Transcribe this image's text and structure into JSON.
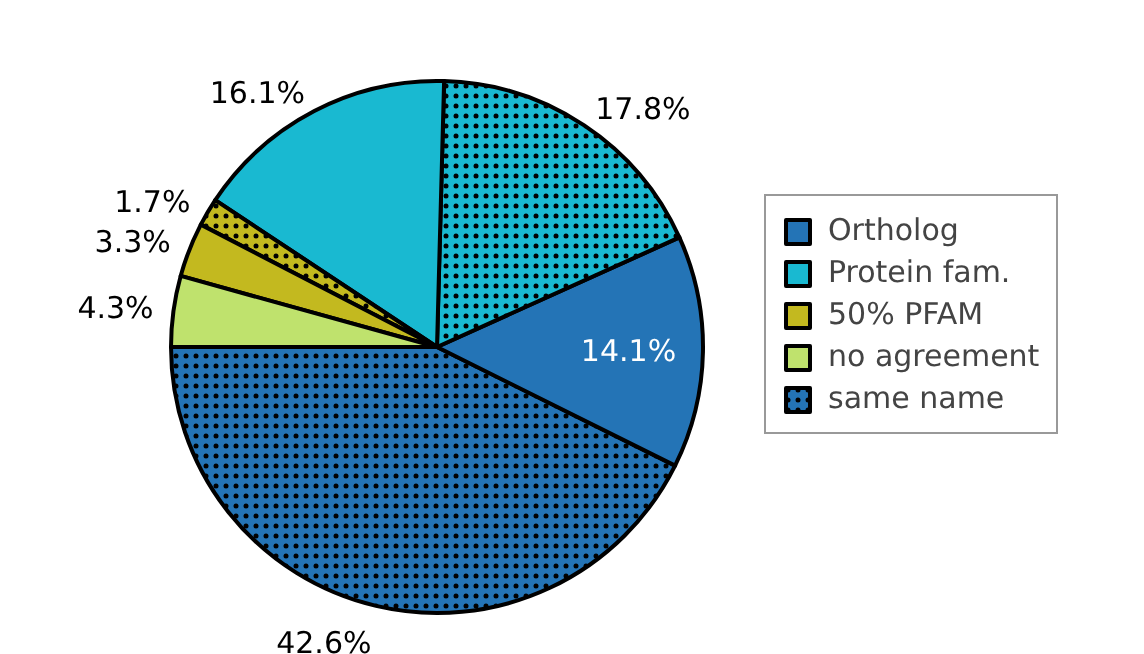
{
  "chart_data": {
    "type": "pie",
    "categories": [
      null,
      "Ortholog",
      null,
      "Protein fam.",
      null,
      "50% PFAM",
      "no agreement"
    ],
    "values": [
      42.6,
      14.1,
      17.8,
      16.1,
      1.7,
      3.3,
      4.3
    ],
    "colors": [
      "#2474b6",
      "#2474b6",
      "#19b9d1",
      "#19b9d1",
      "#c3b91f",
      "#c3b91f",
      "#bfe26d"
    ],
    "annotations": [
      "same name"
    ],
    "value_labels": [
      "42.6%",
      "14.1%",
      "17.8%",
      "16.1%",
      "1.7%",
      "3.3%",
      "4.3%"
    ],
    "legend": "right"
  }
}
